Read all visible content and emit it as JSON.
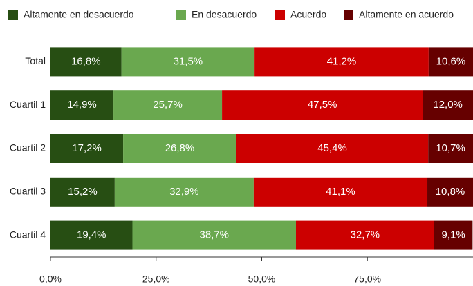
{
  "chart_data": {
    "type": "stacked_bar_horizontal",
    "categories": [
      "Total",
      "Cuartil 1",
      "Cuartil 2",
      "Cuartil 3",
      "Cuartil 4"
    ],
    "series": [
      {
        "name": "Altamente en desacuerdo",
        "color": "#274e13",
        "values": [
          16.8,
          14.9,
          17.2,
          15.2,
          19.4
        ],
        "value_labels": [
          "16,8%",
          "14,9%",
          "17,2%",
          "15,2%",
          "19,4%"
        ]
      },
      {
        "name": "En desacuerdo",
        "color": "#6aa84f",
        "values": [
          31.5,
          25.7,
          26.8,
          32.9,
          38.7
        ],
        "value_labels": [
          "31,5%",
          "25,7%",
          "26,8%",
          "32,9%",
          "38,7%"
        ]
      },
      {
        "name": "Acuerdo",
        "color": "#cc0000",
        "values": [
          41.2,
          47.5,
          45.4,
          41.1,
          32.7
        ],
        "value_labels": [
          "41,2%",
          "47,5%",
          "45,4%",
          "41,1%",
          "32,7%"
        ]
      },
      {
        "name": "Altamente en acuerdo",
        "color": "#660000",
        "values": [
          10.6,
          12.0,
          10.7,
          10.8,
          9.1
        ],
        "value_labels": [
          "10,6%",
          "12,0%",
          "10,7%",
          "10,8%",
          "9,1%"
        ]
      }
    ],
    "xlim": [
      0,
      100
    ],
    "xticks": [
      {
        "value": 0,
        "label": "0,0%"
      },
      {
        "value": 25,
        "label": "25,0%"
      },
      {
        "value": 50,
        "label": "50,0%"
      },
      {
        "value": 75,
        "label": "75,0%"
      }
    ],
    "legend": "top"
  }
}
